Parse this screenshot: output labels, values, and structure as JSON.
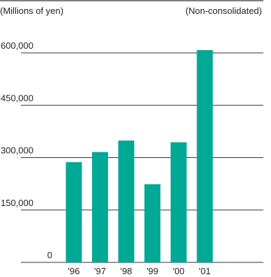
{
  "chart_data": {
    "type": "bar",
    "unit_label": "(Millions of yen)",
    "note": "(Non-consolidated)",
    "categories": [
      "'96",
      "'97",
      "'98",
      "'99",
      "'00",
      "'01"
    ],
    "values": [
      287000,
      316000,
      349000,
      224000,
      344000,
      608000
    ],
    "yticks": [
      0,
      150000,
      300000,
      450000,
      600000
    ],
    "ytick_labels": [
      "0",
      "150,000",
      "300,000",
      "450,000",
      "600,000"
    ],
    "ylim": [
      0,
      675000
    ],
    "bar_color": "#00a896",
    "grid": true
  }
}
